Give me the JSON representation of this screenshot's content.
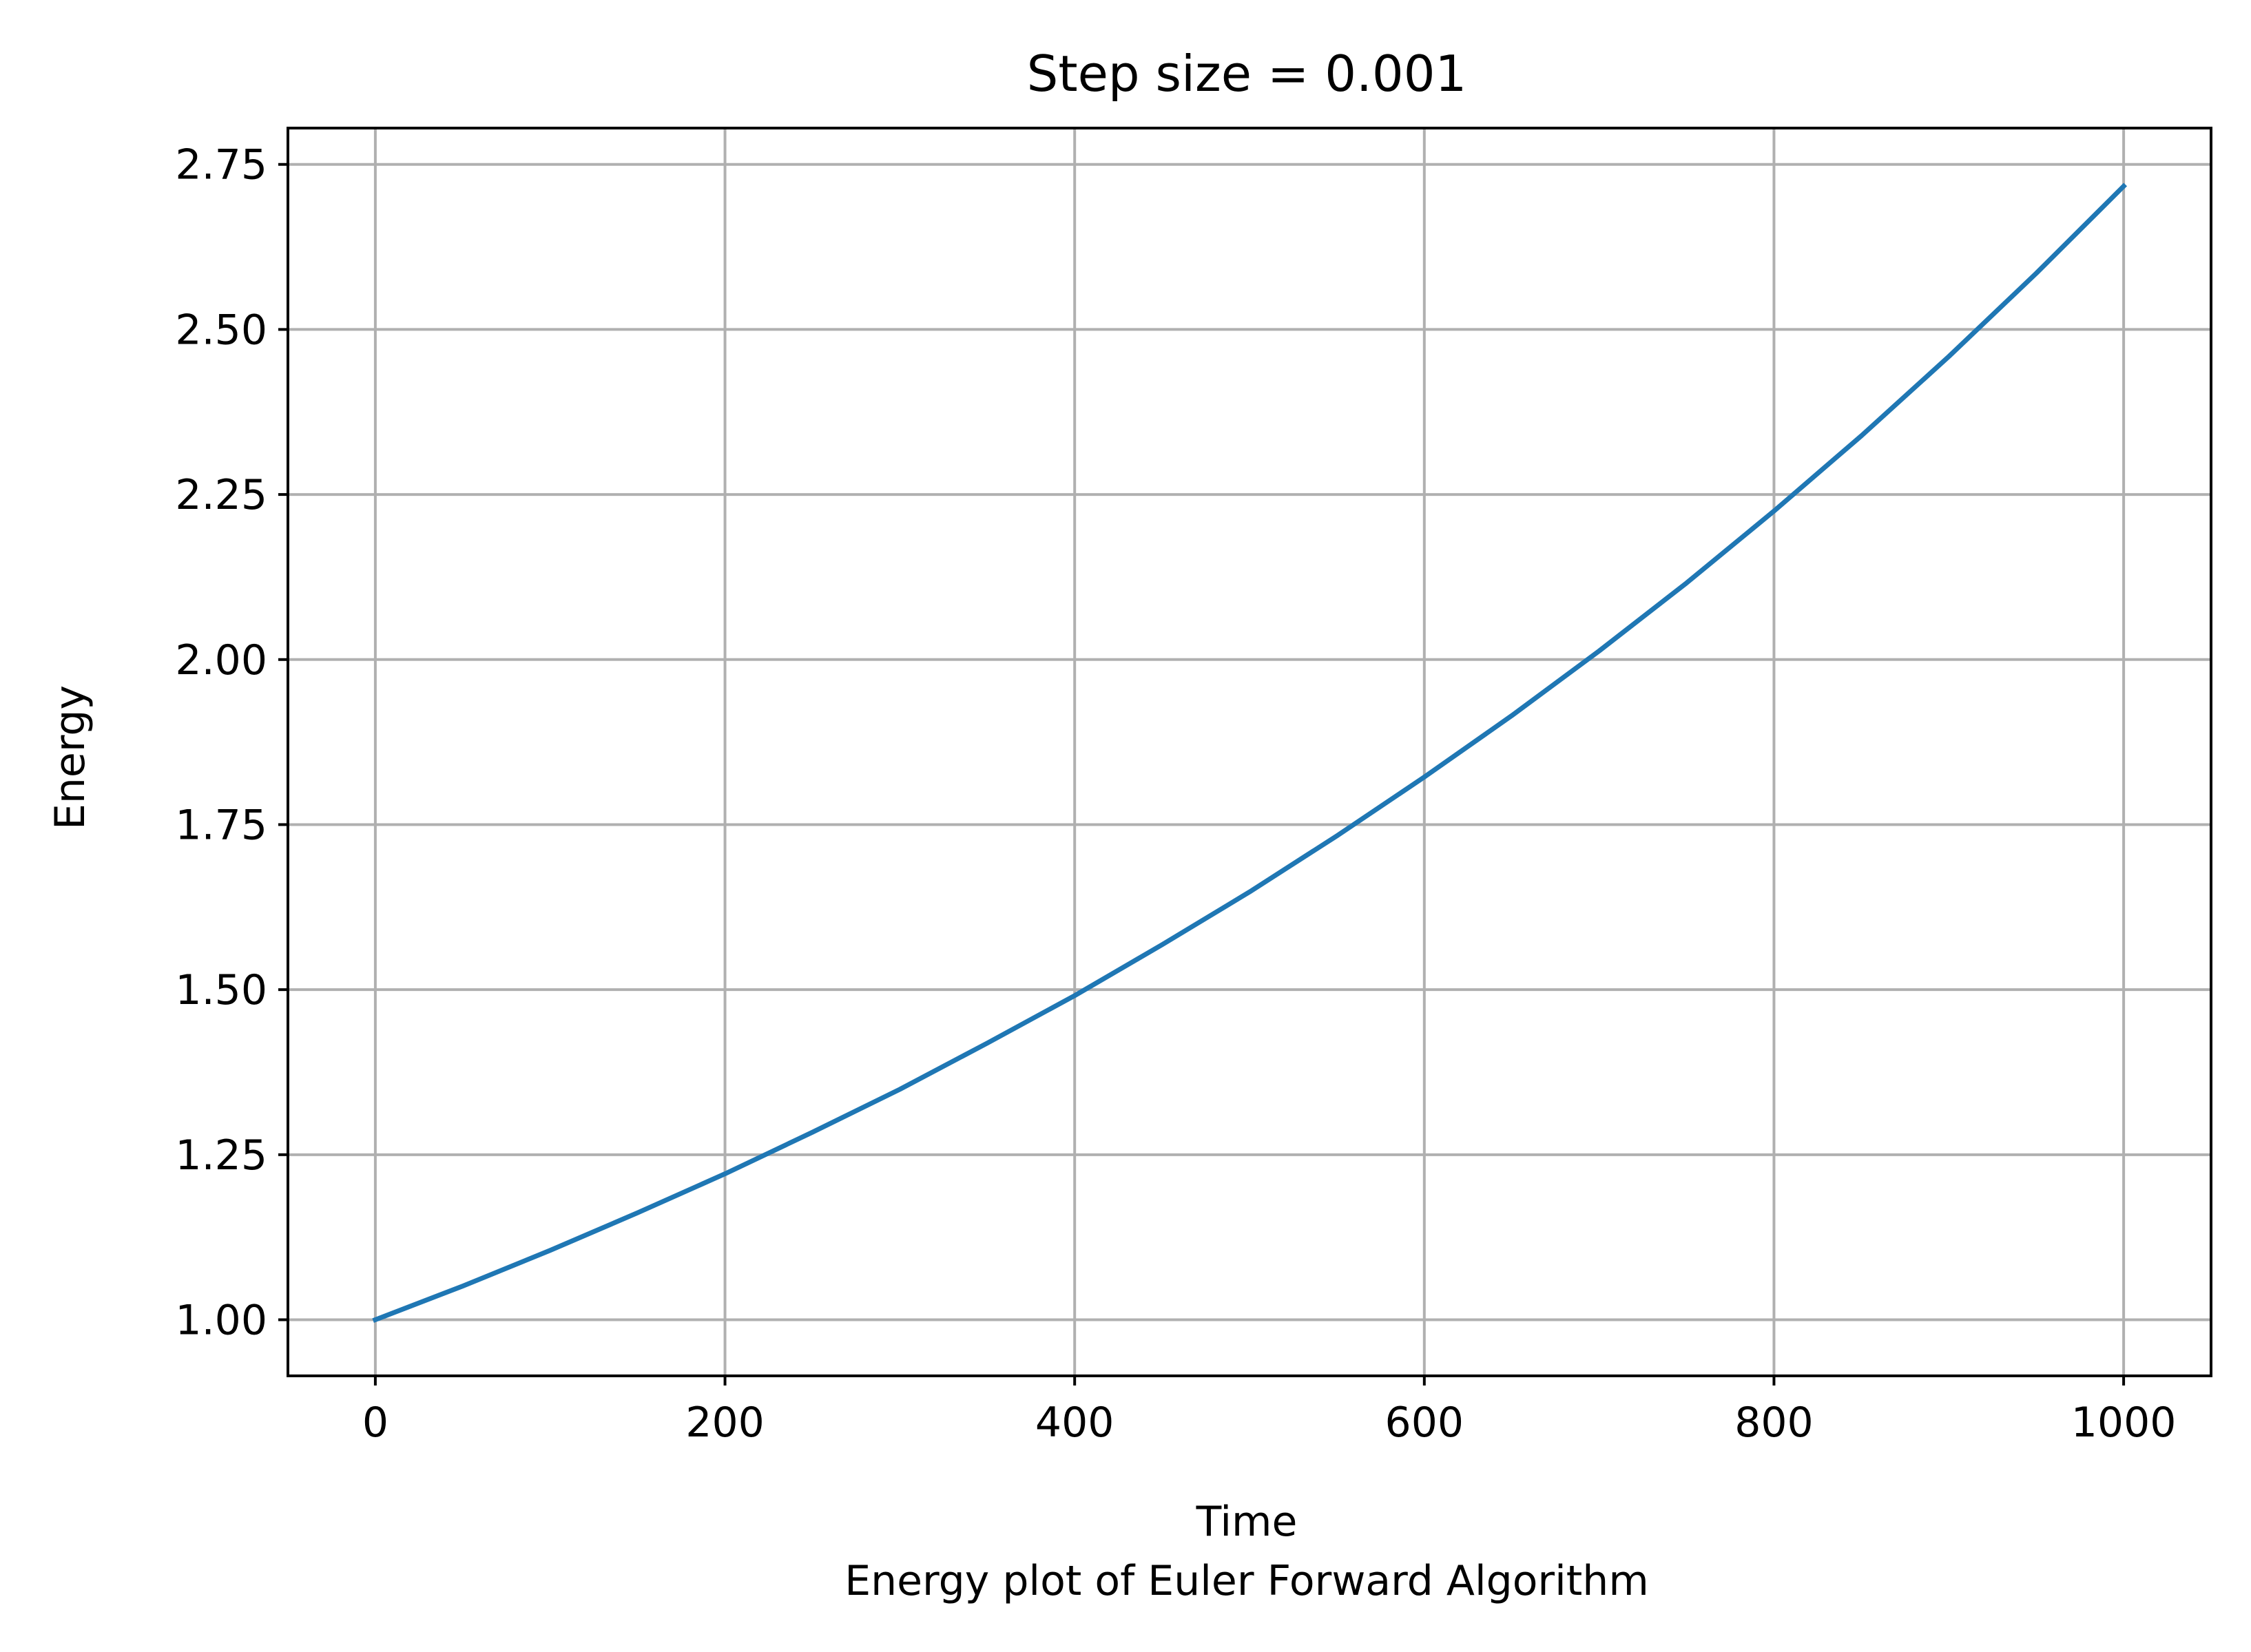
{
  "chart_data": {
    "type": "line",
    "title": "Step size = 0.001",
    "xlabel": "Time",
    "ylabel": "Energy",
    "caption": "Energy plot of Euler Forward Algorithm",
    "xlim": [
      -50,
      1050
    ],
    "ylim": [
      0.915,
      2.805
    ],
    "xticks": [
      0,
      200,
      400,
      600,
      800,
      1000
    ],
    "xtick_labels": [
      "0",
      "200",
      "400",
      "600",
      "800",
      "1000"
    ],
    "yticks": [
      1.0,
      1.25,
      1.5,
      1.75,
      2.0,
      2.25,
      2.5,
      2.75
    ],
    "ytick_labels": [
      "1.00",
      "1.25",
      "1.50",
      "1.75",
      "2.00",
      "2.25",
      "2.50",
      "2.75"
    ],
    "grid": true,
    "series": [
      {
        "color": "#1f77b4",
        "x": [
          0,
          50,
          100,
          150,
          200,
          250,
          300,
          350,
          400,
          450,
          500,
          550,
          600,
          650,
          700,
          750,
          800,
          850,
          900,
          950,
          1000
        ],
        "y": [
          1.0,
          1.051,
          1.105,
          1.162,
          1.221,
          1.284,
          1.349,
          1.419,
          1.491,
          1.568,
          1.648,
          1.733,
          1.822,
          1.915,
          2.013,
          2.116,
          2.225,
          2.339,
          2.459,
          2.585,
          2.717
        ]
      }
    ]
  }
}
